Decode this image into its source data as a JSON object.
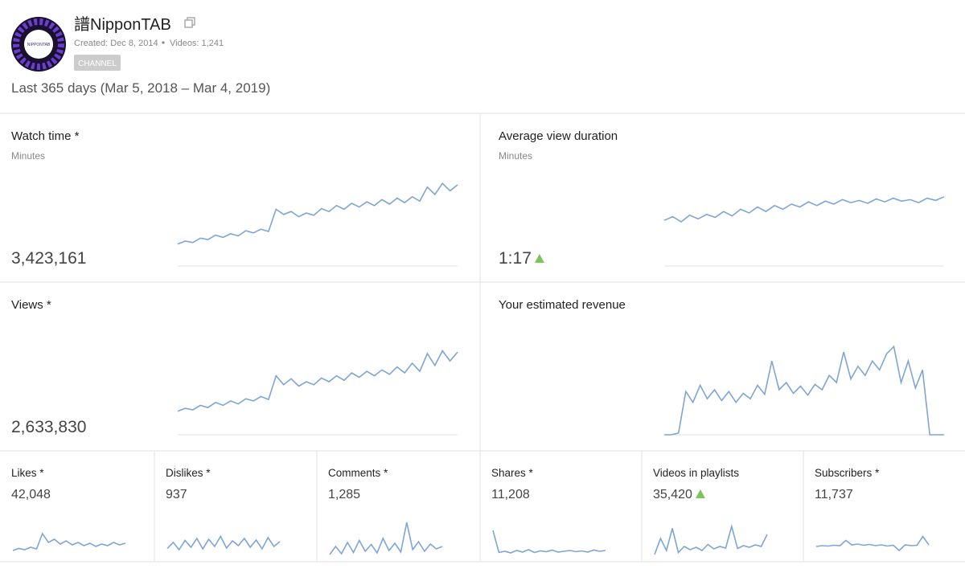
{
  "header": {
    "title": "譜NipponTAB",
    "logo_text": "NIPPONTAB",
    "created": "Created: Dec 8, 2014",
    "videos": "Videos: 1,241",
    "badge": "CHANNEL",
    "period": "Last 365 days (Mar 5, 2018 – Mar 4, 2019)"
  },
  "cards": [
    {
      "title": "Watch time *",
      "unit": "Minutes",
      "value": "3,423,161",
      "trend_up": false,
      "trend": [
        8,
        12,
        10,
        16,
        14,
        20,
        17,
        22,
        19,
        26,
        23,
        28,
        25,
        55,
        48,
        52,
        45,
        50,
        47,
        56,
        52,
        60,
        55,
        63,
        58,
        65,
        60,
        68,
        62,
        70,
        64,
        72,
        66,
        85,
        75,
        90,
        80,
        88
      ]
    },
    {
      "title": "Average view duration",
      "unit": "Minutes",
      "value": "1:17",
      "trend_up": true,
      "trend": [
        40,
        45,
        38,
        47,
        42,
        48,
        44,
        52,
        46,
        55,
        50,
        58,
        52,
        60,
        55,
        62,
        58,
        65,
        60,
        66,
        62,
        68,
        64,
        67,
        63,
        69,
        65,
        70,
        66,
        68,
        64,
        70,
        67,
        72
      ]
    },
    {
      "title": "Views *",
      "value": "2,633,830",
      "trend_up": false,
      "trend": [
        10,
        14,
        12,
        18,
        15,
        22,
        18,
        24,
        20,
        27,
        24,
        30,
        26,
        58,
        46,
        54,
        44,
        50,
        46,
        55,
        50,
        58,
        52,
        62,
        56,
        64,
        58,
        66,
        60,
        70,
        62,
        75,
        64,
        88,
        72,
        92,
        78,
        90
      ]
    },
    {
      "title": "Your estimated revenue",
      "trend_up": false,
      "trend": [
        0,
        0,
        2,
        48,
        36,
        55,
        40,
        50,
        38,
        48,
        36,
        46,
        40,
        55,
        45,
        82,
        50,
        58,
        46,
        54,
        44,
        56,
        50,
        66,
        58,
        92,
        62,
        76,
        66,
        82,
        72,
        90,
        98,
        58,
        82,
        52,
        72,
        0,
        0,
        0
      ]
    },
    {
      "title": "Likes *",
      "value": "42,048",
      "trend_up": false,
      "trend": [
        20,
        25,
        22,
        28,
        24,
        62,
        40,
        48,
        36,
        44,
        34,
        40,
        32,
        38,
        30,
        36,
        32,
        40,
        34,
        38
      ]
    },
    {
      "title": "Dislikes *",
      "value": "937",
      "trend_up": false,
      "trend": [
        25,
        40,
        22,
        45,
        28,
        50,
        24,
        48,
        30,
        55,
        26,
        44,
        32,
        50,
        28,
        46,
        24,
        52,
        30,
        42
      ]
    },
    {
      "title": "Comments *",
      "value": "1,285",
      "trend_up": false,
      "trend": [
        10,
        30,
        12,
        40,
        15,
        45,
        18,
        35,
        14,
        50,
        20,
        38,
        16,
        90,
        22,
        42,
        18,
        36,
        24,
        30
      ]
    },
    {
      "title": "Shares *",
      "value": "11,208",
      "trend_up": false,
      "trend": [
        70,
        15,
        18,
        14,
        20,
        16,
        22,
        15,
        19,
        17,
        21,
        16,
        18,
        20,
        17,
        19,
        16,
        21,
        18,
        20
      ]
    },
    {
      "title": "Videos in playlists",
      "value": "35,420",
      "trend_up": true,
      "trend": [
        10,
        50,
        20,
        75,
        15,
        30,
        22,
        28,
        20,
        35,
        24,
        30,
        26,
        80,
        25,
        32,
        28,
        34,
        30,
        60
      ]
    },
    {
      "title": "Subscribers *",
      "value": "11,737",
      "trend_up": false,
      "trend": [
        30,
        32,
        31,
        33,
        32,
        45,
        34,
        36,
        33,
        35,
        32,
        34,
        31,
        33,
        20,
        34,
        32,
        33,
        55,
        34
      ]
    }
  ]
}
